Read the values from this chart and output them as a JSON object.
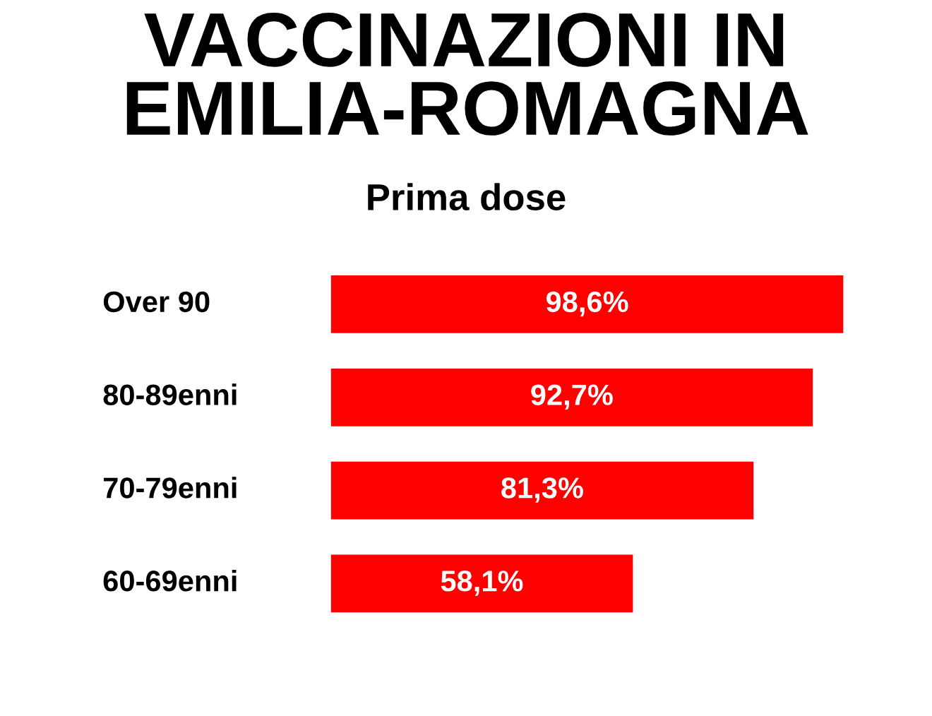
{
  "chart_data": {
    "type": "bar",
    "orientation": "horizontal",
    "title": "VACCINAZIONI IN\nEMILIA-ROMAGNA",
    "subtitle": "Prima dose",
    "categories": [
      "Over 90",
      "80-89enni",
      "70-79enni",
      "60-69enni"
    ],
    "values": [
      98.6,
      92.7,
      81.3,
      58.1
    ],
    "value_labels": [
      "98,6%",
      "92,7%",
      "81,3%",
      "58,1%"
    ],
    "color": "#ff0000"
  }
}
